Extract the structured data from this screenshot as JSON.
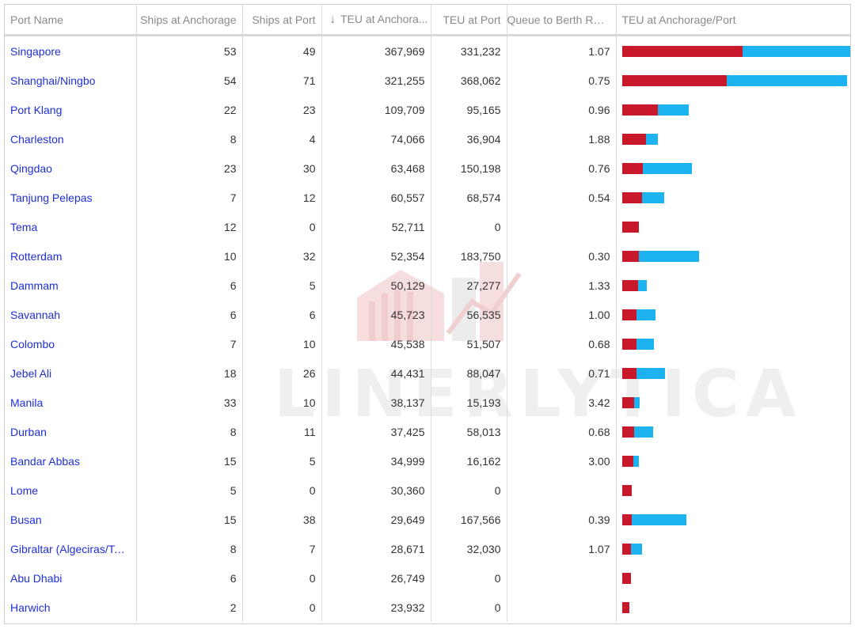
{
  "watermark": "LINERLYTICA",
  "colors": {
    "anchorage": "#c8182c",
    "port": "#1cb3f0",
    "link": "#1f2fd6"
  },
  "columns": {
    "name": "Port Name",
    "ships_anchorage": "Ships at Anchorage",
    "ships_port": "Ships at Port",
    "teu_anchorage": "TEU at Anchora...",
    "teu_port": "TEU at Port",
    "queue_ratio": "Queue to Berth Ratio",
    "bar": "TEU at Anchorage/Port"
  },
  "sort_icon": "down-arrow-icon",
  "rows": [
    {
      "name": "Singapore",
      "ships_anchorage": "53",
      "ships_port": "49",
      "teu_anchorage": "367,969",
      "teu_port": "331,232",
      "ratio": "1.07",
      "a": 367969,
      "p": 331232
    },
    {
      "name": "Shanghai/Ningbo",
      "ships_anchorage": "54",
      "ships_port": "71",
      "teu_anchorage": "321,255",
      "teu_port": "368,062",
      "ratio": "0.75",
      "a": 321255,
      "p": 368062
    },
    {
      "name": "Port Klang",
      "ships_anchorage": "22",
      "ships_port": "23",
      "teu_anchorage": "109,709",
      "teu_port": "95,165",
      "ratio": "0.96",
      "a": 109709,
      "p": 95165
    },
    {
      "name": "Charleston",
      "ships_anchorage": "8",
      "ships_port": "4",
      "teu_anchorage": "74,066",
      "teu_port": "36,904",
      "ratio": "1.88",
      "a": 74066,
      "p": 36904
    },
    {
      "name": "Qingdao",
      "ships_anchorage": "23",
      "ships_port": "30",
      "teu_anchorage": "63,468",
      "teu_port": "150,198",
      "ratio": "0.76",
      "a": 63468,
      "p": 150198
    },
    {
      "name": "Tanjung Pelepas",
      "ships_anchorage": "7",
      "ships_port": "12",
      "teu_anchorage": "60,557",
      "teu_port": "68,574",
      "ratio": "0.54",
      "a": 60557,
      "p": 68574
    },
    {
      "name": "Tema",
      "ships_anchorage": "12",
      "ships_port": "0",
      "teu_anchorage": "52,711",
      "teu_port": "0",
      "ratio": "",
      "a": 52711,
      "p": 0
    },
    {
      "name": "Rotterdam",
      "ships_anchorage": "10",
      "ships_port": "32",
      "teu_anchorage": "52,354",
      "teu_port": "183,750",
      "ratio": "0.30",
      "a": 52354,
      "p": 183750
    },
    {
      "name": "Dammam",
      "ships_anchorage": "6",
      "ships_port": "5",
      "teu_anchorage": "50,129",
      "teu_port": "27,277",
      "ratio": "1.33",
      "a": 50129,
      "p": 27277
    },
    {
      "name": "Savannah",
      "ships_anchorage": "6",
      "ships_port": "6",
      "teu_anchorage": "45,723",
      "teu_port": "56,535",
      "ratio": "1.00",
      "a": 45723,
      "p": 56535
    },
    {
      "name": "Colombo",
      "ships_anchorage": "7",
      "ships_port": "10",
      "teu_anchorage": "45,538",
      "teu_port": "51,507",
      "ratio": "0.68",
      "a": 45538,
      "p": 51507
    },
    {
      "name": "Jebel Ali",
      "ships_anchorage": "18",
      "ships_port": "26",
      "teu_anchorage": "44,431",
      "teu_port": "88,047",
      "ratio": "0.71",
      "a": 44431,
      "p": 88047
    },
    {
      "name": "Manila",
      "ships_anchorage": "33",
      "ships_port": "10",
      "teu_anchorage": "38,137",
      "teu_port": "15,193",
      "ratio": "3.42",
      "a": 38137,
      "p": 15193
    },
    {
      "name": "Durban",
      "ships_anchorage": "8",
      "ships_port": "11",
      "teu_anchorage": "37,425",
      "teu_port": "58,013",
      "ratio": "0.68",
      "a": 37425,
      "p": 58013
    },
    {
      "name": "Bandar Abbas",
      "ships_anchorage": "15",
      "ships_port": "5",
      "teu_anchorage": "34,999",
      "teu_port": "16,162",
      "ratio": "3.00",
      "a": 34999,
      "p": 16162
    },
    {
      "name": "Lome",
      "ships_anchorage": "5",
      "ships_port": "0",
      "teu_anchorage": "30,360",
      "teu_port": "0",
      "ratio": "",
      "a": 30360,
      "p": 0
    },
    {
      "name": "Busan",
      "ships_anchorage": "15",
      "ships_port": "38",
      "teu_anchorage": "29,649",
      "teu_port": "167,566",
      "ratio": "0.39",
      "a": 29649,
      "p": 167566
    },
    {
      "name": "Gibraltar (Algeciras/Tan...",
      "ships_anchorage": "8",
      "ships_port": "7",
      "teu_anchorage": "28,671",
      "teu_port": "32,030",
      "ratio": "1.07",
      "a": 28671,
      "p": 32030
    },
    {
      "name": "Abu Dhabi",
      "ships_anchorage": "6",
      "ships_port": "0",
      "teu_anchorage": "26,749",
      "teu_port": "0",
      "ratio": "",
      "a": 26749,
      "p": 0
    },
    {
      "name": "Harwich",
      "ships_anchorage": "2",
      "ships_port": "0",
      "teu_anchorage": "23,932",
      "teu_port": "0",
      "ratio": "",
      "a": 23932,
      "p": 0
    }
  ]
}
